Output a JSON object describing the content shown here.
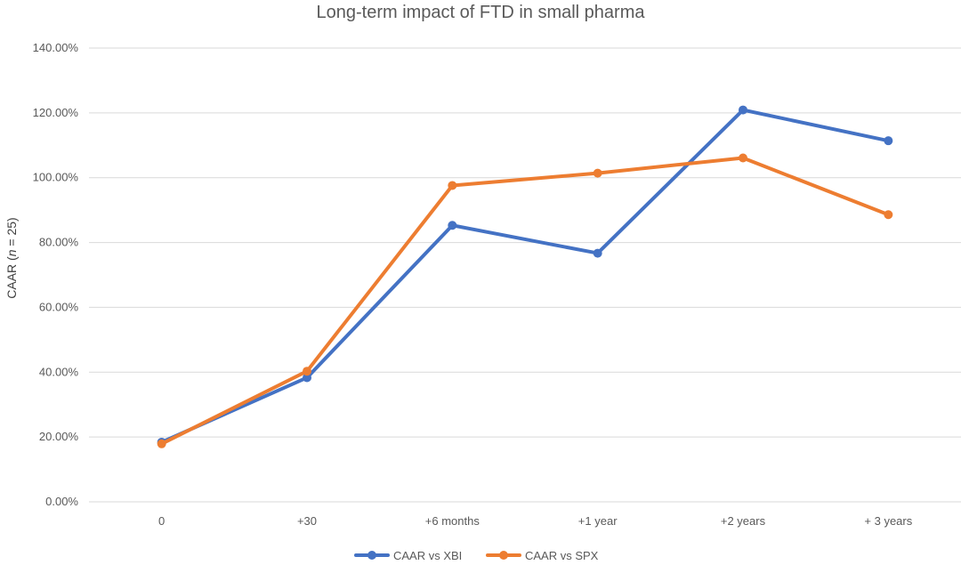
{
  "chart_data": {
    "type": "line",
    "title": "Long-term impact of FTD in small pharma",
    "xlabel": "",
    "ylabel": "CAAR (n = 25)",
    "ylim": [
      0,
      140
    ],
    "yticks": [
      "0.00%",
      "20.00%",
      "40.00%",
      "60.00%",
      "80.00%",
      "100.00%",
      "120.00%",
      "140.00%"
    ],
    "categories": [
      "0",
      "+30",
      "+6 months",
      "+1 year",
      "+2 years",
      "+ 3 years"
    ],
    "grid": true,
    "legend": "bottom",
    "series": [
      {
        "name": "CAAR vs XBI",
        "color": "#4472C4",
        "values": [
          18.4,
          38.3,
          85.3,
          76.7,
          120.9,
          111.4
        ]
      },
      {
        "name": "CAAR vs SPX",
        "color": "#ED7D31",
        "values": [
          17.9,
          40.3,
          97.6,
          101.4,
          106.1,
          88.6
        ]
      }
    ]
  }
}
